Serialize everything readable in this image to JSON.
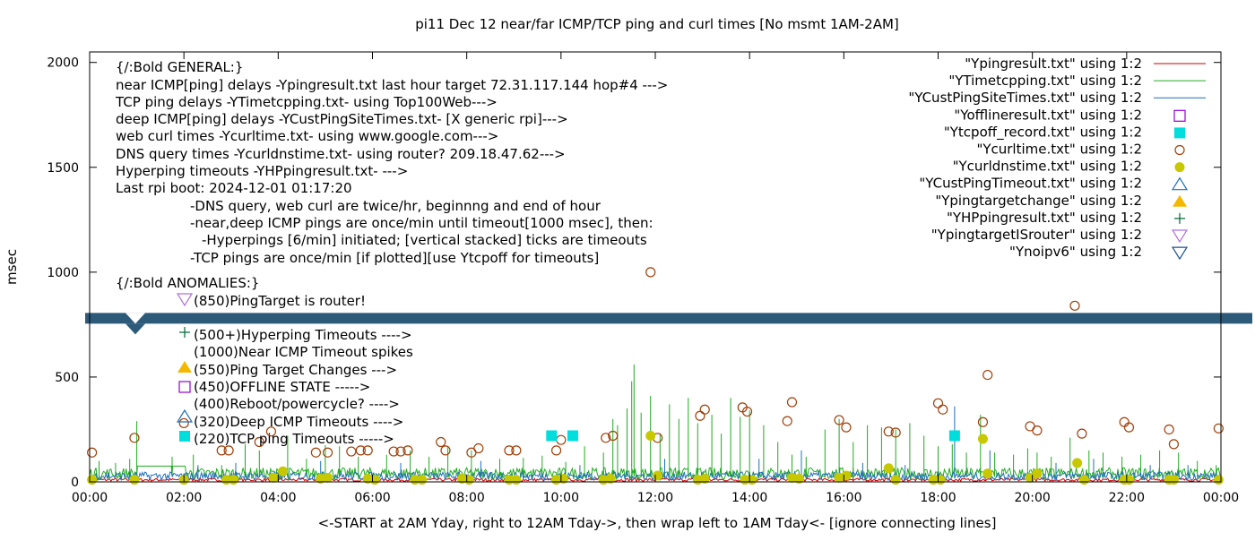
{
  "chart_data": {
    "type": "line",
    "title": "pi11 Dec 12  near/far ICMP/TCP ping and curl times [No msmt 1AM-2AM]",
    "xlabel": "<-START at 2AM Yday, right to 12AM Tday->, then wrap left to 1AM Tday<- [ignore connecting lines]",
    "ylabel": "msec",
    "xlim": [
      0,
      24
    ],
    "ylim": [
      0,
      2050
    ],
    "x_ticks": [
      "00:00",
      "02:00",
      "04:00",
      "06:00",
      "08:00",
      "10:00",
      "12:00",
      "14:00",
      "16:00",
      "18:00",
      "20:00",
      "22:00",
      "00:00"
    ],
    "y_ticks": [
      0,
      500,
      1000,
      1500,
      2000
    ],
    "legend_placement": "top-right",
    "legend": [
      {
        "label": "\"Ypingresult.txt\" using 1:2",
        "kind": "line",
        "color": "#cc0000"
      },
      {
        "label": "\"YTimetcpping.txt\" using 1:2",
        "kind": "line",
        "color": "#22aa22"
      },
      {
        "label": "\"YCustPingSiteTimes.txt\" using 1:2",
        "kind": "line",
        "color": "#1f6fbf"
      },
      {
        "label": "\"Yofflineresult.txt\" using 1:2",
        "kind": "open-square",
        "color": "#9400d3"
      },
      {
        "label": "\"Ytcpoff_record.txt\" using 1:2",
        "kind": "filled-square",
        "color": "#00dddd"
      },
      {
        "label": "\"Ycurltime.txt\" using 1:2",
        "kind": "open-circle",
        "color": "#a0400a"
      },
      {
        "label": "\"Ycurldnstime.txt\" using 1:2",
        "kind": "filled-circle",
        "color": "#c8c800"
      },
      {
        "label": "\"YCustPingTimeout.txt\" using 1:2",
        "kind": "open-triangle",
        "color": "#1f6fbf"
      },
      {
        "label": "\"Ypingtargetchange\" using 1:2",
        "kind": "filled-triangle",
        "color": "#f5b800"
      },
      {
        "label": "\"YHPpingresult.txt\" using 1:2",
        "kind": "plus",
        "color": "#006633"
      },
      {
        "label": "\"YpingtargetISrouter\" using 1:2",
        "kind": "open-triangle-down",
        "color": "#b070e0"
      },
      {
        "label": "\"Ynoipv6\" using 1:2",
        "kind": "open-triangle-down",
        "color": "#1f4f8f"
      }
    ],
    "annotations": [
      "{/:Bold GENERAL:}",
      "near ICMP[ping] delays -Ypingresult.txt last hour target 72.31.117.144 hop#4 --->",
      "TCP ping delays -YTimetcpping.txt- using Top100Web--->",
      "deep ICMP[ping] delays -YCustPingSiteTimes.txt- [X generic rpi]--->",
      "web curl times -Ycurltime.txt- using www.google.com--->",
      "DNS query times -Ycurldnstime.txt- using router? 209.18.47.62--->",
      "Hyperping timeouts -YHPpingresult.txt- --->",
      "Last rpi boot: 2024-12-01 01:17:20",
      "-DNS query, web curl are twice/hr, beginnng and end of hour",
      "-near,deep ICMP pings are once/min until timeout[1000 msec], then:",
      "-Hyperpings [6/min] initiated; [vertical stacked] ticks are timeouts",
      "-TCP pings are once/min [if plotted][use Ytcpoff for timeouts]",
      "{/:Bold ANOMALIES:}",
      "(850)PingTarget is router!",
      "(500+)Hyperping Timeouts ---->",
      "(1000)Near ICMP Timeout spikes",
      "(550)Ping Target Changes --->",
      "(450)OFFLINE STATE ----->",
      "(400)Reboot/powercycle? ---->",
      "(320)Deep ICMP Timeouts ---->",
      "(220)TCP ping Timeouts ----->"
    ],
    "noipv6_band": {
      "y": 780,
      "color": "#2e5a7a"
    },
    "series": [
      {
        "name": "\"Ypingresult.txt\" using 1:2",
        "color": "#cc0000",
        "base": 10,
        "spikes": [
          [
            3.0,
            20
          ],
          [
            11.5,
            25
          ],
          [
            16.2,
            65
          ],
          [
            19.0,
            28
          ]
        ]
      },
      {
        "name": "\"YTimetcpping.txt\" using 1:2",
        "color": "#22aa22",
        "base": 40,
        "spikes": [
          [
            0.2,
            100
          ],
          [
            0.55,
            90
          ],
          [
            0.85,
            110
          ],
          [
            1.0,
            290
          ],
          [
            1.75,
            120
          ],
          [
            2.2,
            130
          ],
          [
            2.8,
            80
          ],
          [
            3.3,
            180
          ],
          [
            3.6,
            150
          ],
          [
            4.2,
            220
          ],
          [
            4.6,
            110
          ],
          [
            5.0,
            175
          ],
          [
            5.3,
            170
          ],
          [
            5.7,
            120
          ],
          [
            6.3,
            130
          ],
          [
            6.8,
            150
          ],
          [
            7.2,
            120
          ],
          [
            7.6,
            165
          ],
          [
            8.1,
            150
          ],
          [
            8.7,
            110
          ],
          [
            9.2,
            115
          ],
          [
            9.6,
            125
          ],
          [
            10.1,
            95
          ],
          [
            10.5,
            170
          ],
          [
            10.9,
            140
          ],
          [
            11.1,
            300
          ],
          [
            11.2,
            270
          ],
          [
            11.4,
            350
          ],
          [
            11.5,
            480
          ],
          [
            11.55,
            560
          ],
          [
            11.7,
            330
          ],
          [
            11.9,
            410
          ],
          [
            12.1,
            230
          ],
          [
            12.3,
            370
          ],
          [
            12.5,
            300
          ],
          [
            12.7,
            400
          ],
          [
            12.9,
            280
          ],
          [
            13.2,
            320
          ],
          [
            13.4,
            230
          ],
          [
            13.6,
            400
          ],
          [
            13.8,
            310
          ],
          [
            14.0,
            340
          ],
          [
            14.3,
            270
          ],
          [
            14.6,
            190
          ],
          [
            14.9,
            130
          ],
          [
            15.2,
            120
          ],
          [
            15.6,
            250
          ],
          [
            15.9,
            300
          ],
          [
            16.2,
            190
          ],
          [
            16.5,
            270
          ],
          [
            16.8,
            260
          ],
          [
            17.1,
            250
          ],
          [
            17.4,
            280
          ],
          [
            17.7,
            220
          ],
          [
            18.0,
            170
          ],
          [
            18.3,
            180
          ],
          [
            18.6,
            140
          ],
          [
            18.9,
            320
          ],
          [
            19.2,
            140
          ],
          [
            19.6,
            130
          ],
          [
            19.9,
            160
          ],
          [
            20.1,
            140
          ],
          [
            20.4,
            120
          ],
          [
            20.8,
            210
          ],
          [
            21.2,
            150
          ],
          [
            21.5,
            140
          ],
          [
            21.9,
            120
          ],
          [
            22.3,
            130
          ],
          [
            22.7,
            150
          ],
          [
            23.1,
            140
          ],
          [
            23.5,
            100
          ],
          [
            23.9,
            80
          ]
        ]
      },
      {
        "name": "\"YCustPingSiteTimes.txt\" using 1:2",
        "color": "#1f6fbf",
        "base": 28,
        "spikes": [
          [
            2.3,
            80
          ],
          [
            3.1,
            90
          ],
          [
            4.9,
            100
          ],
          [
            6.6,
            90
          ],
          [
            8.3,
            100
          ],
          [
            10.4,
            80
          ],
          [
            12.2,
            110
          ],
          [
            14.2,
            110
          ],
          [
            15.1,
            150
          ],
          [
            16.4,
            90
          ],
          [
            17.3,
            80
          ],
          [
            18.35,
            360
          ],
          [
            19.1,
            150
          ],
          [
            20.5,
            90
          ],
          [
            21.3,
            110
          ],
          [
            22.5,
            80
          ],
          [
            23.3,
            80
          ]
        ]
      }
    ],
    "curl_times": [
      [
        0.05,
        140
      ],
      [
        0.95,
        210
      ],
      [
        2.0,
        280
      ],
      [
        2.8,
        150
      ],
      [
        2.95,
        150
      ],
      [
        3.6,
        190
      ],
      [
        3.85,
        240
      ],
      [
        4.8,
        140
      ],
      [
        5.05,
        140
      ],
      [
        5.55,
        145
      ],
      [
        5.75,
        150
      ],
      [
        5.9,
        150
      ],
      [
        6.45,
        145
      ],
      [
        6.6,
        145
      ],
      [
        6.75,
        150
      ],
      [
        7.45,
        190
      ],
      [
        7.55,
        150
      ],
      [
        8.1,
        140
      ],
      [
        8.25,
        160
      ],
      [
        8.9,
        150
      ],
      [
        9.05,
        150
      ],
      [
        9.9,
        150
      ],
      [
        10.0,
        200
      ],
      [
        10.95,
        210
      ],
      [
        11.1,
        220
      ],
      [
        11.9,
        1000
      ],
      [
        12.05,
        210
      ],
      [
        12.95,
        315
      ],
      [
        13.05,
        345
      ],
      [
        13.85,
        355
      ],
      [
        13.95,
        335
      ],
      [
        14.8,
        290
      ],
      [
        14.9,
        380
      ],
      [
        15.9,
        295
      ],
      [
        16.05,
        260
      ],
      [
        16.95,
        240
      ],
      [
        17.1,
        235
      ],
      [
        18.0,
        375
      ],
      [
        18.1,
        345
      ],
      [
        18.95,
        285
      ],
      [
        19.05,
        510
      ],
      [
        19.95,
        265
      ],
      [
        20.1,
        245
      ],
      [
        20.9,
        840
      ],
      [
        21.05,
        230
      ],
      [
        21.95,
        285
      ],
      [
        22.05,
        260
      ],
      [
        22.9,
        250
      ],
      [
        23.0,
        180
      ],
      [
        23.95,
        255
      ]
    ],
    "dns_times": [
      [
        0.05,
        10
      ],
      [
        0.95,
        10
      ],
      [
        2.0,
        10
      ],
      [
        2.9,
        10
      ],
      [
        3.05,
        10
      ],
      [
        3.9,
        20
      ],
      [
        4.1,
        50
      ],
      [
        4.9,
        15
      ],
      [
        5.05,
        20
      ],
      [
        5.9,
        15
      ],
      [
        6.05,
        10
      ],
      [
        6.9,
        10
      ],
      [
        7.05,
        10
      ],
      [
        7.9,
        15
      ],
      [
        8.05,
        10
      ],
      [
        8.9,
        10
      ],
      [
        9.05,
        10
      ],
      [
        9.9,
        10
      ],
      [
        10.05,
        15
      ],
      [
        10.9,
        10
      ],
      [
        11.05,
        15
      ],
      [
        11.9,
        220
      ],
      [
        12.05,
        30
      ],
      [
        12.9,
        10
      ],
      [
        13.05,
        15
      ],
      [
        13.9,
        10
      ],
      [
        14.05,
        10
      ],
      [
        14.9,
        20
      ],
      [
        15.05,
        15
      ],
      [
        15.9,
        20
      ],
      [
        16.05,
        30
      ],
      [
        16.95,
        65
      ],
      [
        17.1,
        10
      ],
      [
        17.9,
        10
      ],
      [
        18.05,
        10
      ],
      [
        18.95,
        205
      ],
      [
        19.05,
        40
      ],
      [
        19.95,
        20
      ],
      [
        20.1,
        40
      ],
      [
        20.95,
        90
      ],
      [
        21.1,
        10
      ],
      [
        21.95,
        10
      ],
      [
        22.05,
        10
      ],
      [
        22.9,
        10
      ],
      [
        23.0,
        10
      ],
      [
        23.95,
        10
      ]
    ],
    "tcp_timeouts": [
      [
        9.8,
        220
      ],
      [
        10.25,
        220
      ],
      [
        18.35,
        220
      ]
    ]
  }
}
